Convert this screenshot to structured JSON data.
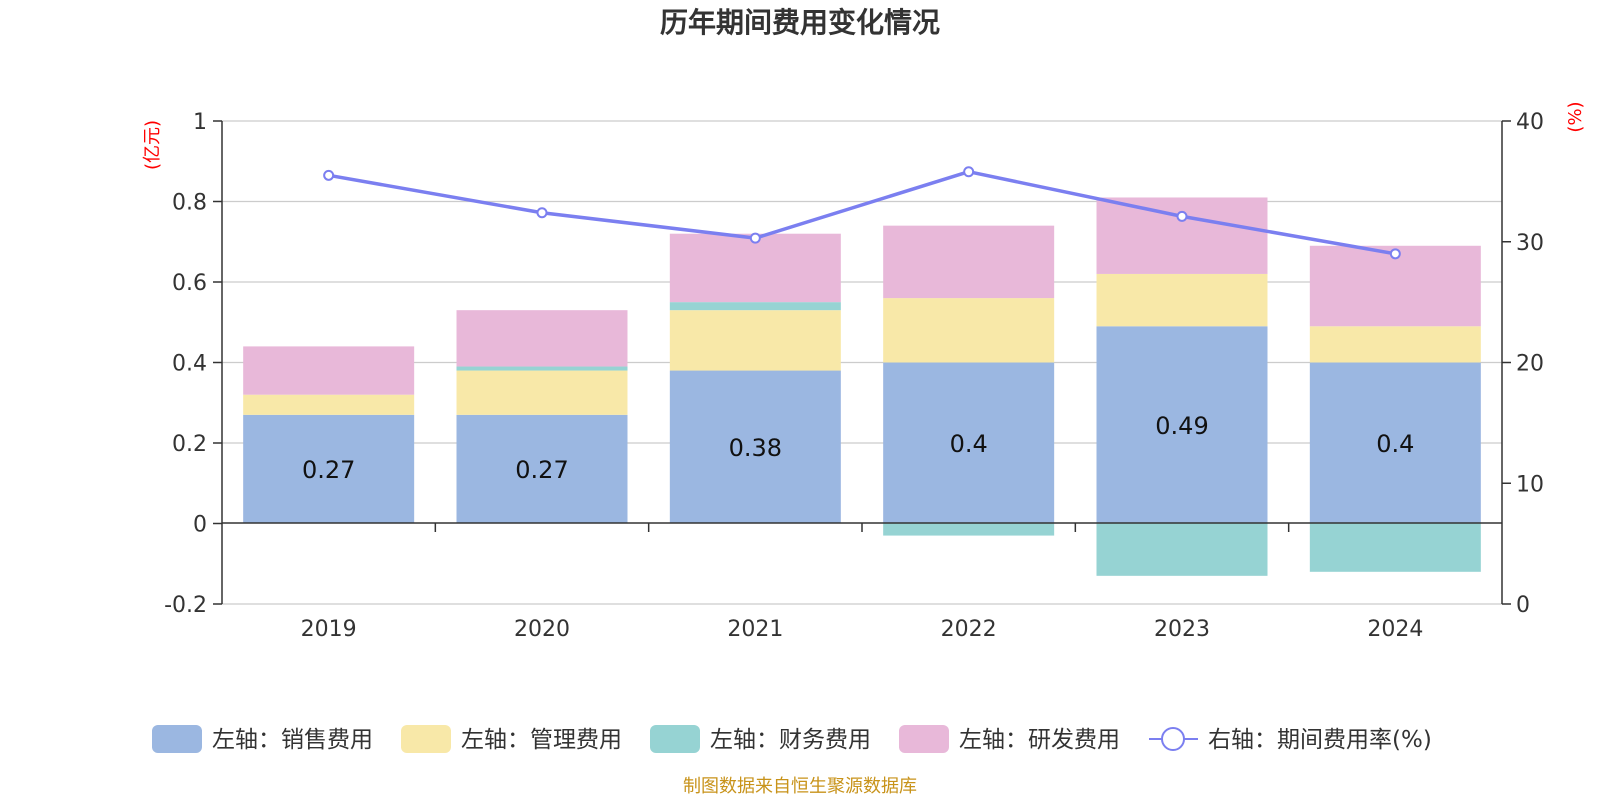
{
  "title": "历年期间费用变化情况",
  "source": "制图数据来自恒生聚源数据库",
  "colors": {
    "sales": "#9bb7e1",
    "admin": "#f8e8a8",
    "finance": "#96d3d3",
    "rd": "#e8b8d9",
    "rate": "#7b7ff0",
    "unit": "#ff0000",
    "source": "#c8931a"
  },
  "chart_data": {
    "type": "bar",
    "title": "历年期间费用变化情况",
    "categories": [
      "2019",
      "2020",
      "2021",
      "2022",
      "2023",
      "2024"
    ],
    "left_axis": {
      "unit": "(亿元)",
      "ylim": [
        -0.2,
        1
      ],
      "ticks": [
        "1",
        "0.8",
        "0.6",
        "0.4",
        "0.2",
        "0",
        "-0.2"
      ],
      "tick_values": [
        1,
        0.8,
        0.6,
        0.4,
        0.2,
        0,
        -0.2
      ]
    },
    "right_axis": {
      "unit": "(%)",
      "ylim": [
        0,
        40
      ],
      "ticks": [
        "40",
        "30",
        "20",
        "10",
        "0"
      ],
      "tick_values": [
        40,
        30,
        20,
        10,
        0
      ]
    },
    "series": [
      {
        "key": "sales",
        "name": "左轴：销售费用",
        "axis": "left",
        "type": "bar",
        "stack": "pos",
        "values": [
          0.27,
          0.27,
          0.38,
          0.4,
          0.49,
          0.4
        ],
        "labels": [
          "0.27",
          "0.27",
          "0.38",
          "0.4",
          "0.49",
          "0.4"
        ]
      },
      {
        "key": "admin",
        "name": "左轴：管理费用",
        "axis": "left",
        "type": "bar",
        "values": [
          0.05,
          0.11,
          0.15,
          0.16,
          0.13,
          0.09
        ]
      },
      {
        "key": "finance",
        "name": "左轴：财务费用",
        "axis": "left",
        "type": "bar",
        "values": [
          0.0,
          0.01,
          0.02,
          -0.03,
          -0.13,
          -0.12
        ]
      },
      {
        "key": "rd",
        "name": "左轴：研发费用",
        "axis": "left",
        "type": "bar",
        "values": [
          0.12,
          0.14,
          0.17,
          0.18,
          0.19,
          0.2
        ]
      },
      {
        "key": "rate",
        "name": "右轴：期间费用率(%)",
        "axis": "right",
        "type": "line",
        "values": [
          35.5,
          32.4,
          30.3,
          35.8,
          32.1,
          29.0
        ]
      }
    ],
    "grid": true,
    "legend_position": "bottom"
  }
}
